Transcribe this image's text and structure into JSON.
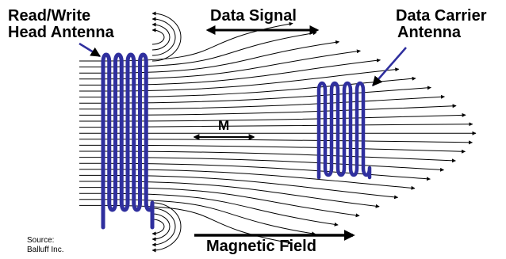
{
  "labels": {
    "read_write_line1": "Read/Write",
    "read_write_line2": "Head Antenna",
    "data_signal": "Data Signal",
    "data_carrier_line1": "Data Carrier",
    "data_carrier_line2": "Antenna",
    "m": "M",
    "magnetic_field": "Magnetic Field",
    "source_line1": "Source:",
    "source_line2": "Balluff Inc."
  },
  "colors": {
    "coil": "#2f2f9e",
    "field_line": "#000000",
    "arrow": "#000000"
  }
}
